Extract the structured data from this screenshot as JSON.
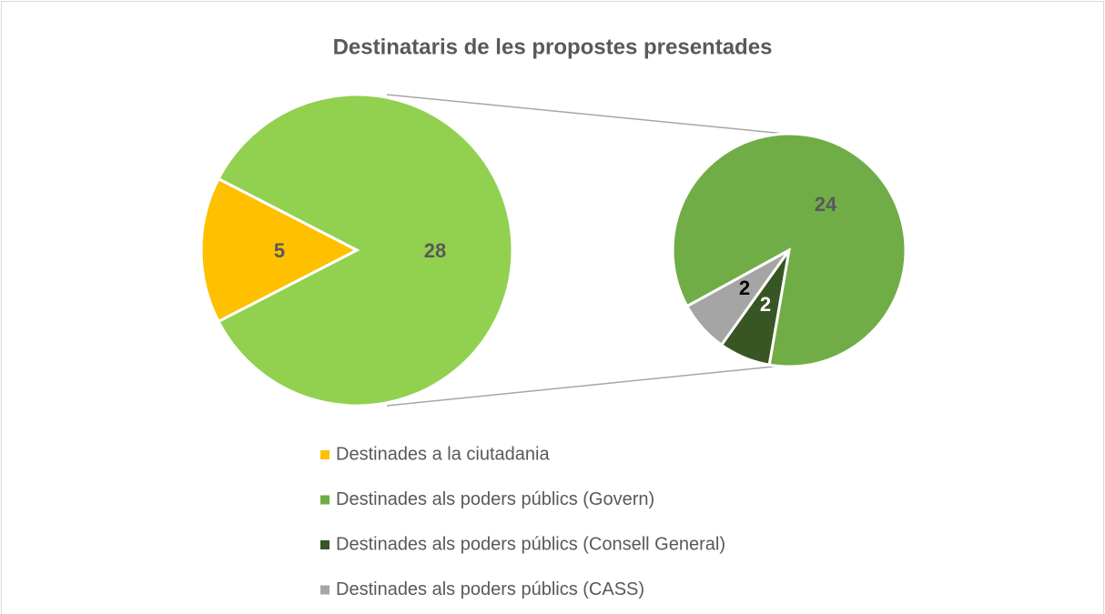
{
  "chart_data": {
    "type": "pie-of-pie",
    "title": "Destinataris de les propostes presentades",
    "categories": [
      "Destinades a la ciutadania",
      "Destinades als poders públics (Govern)",
      "Destinades als poders públics (Consell General)",
      "Destinades als poders públics (CASS)"
    ],
    "values": [
      5,
      24,
      2,
      2
    ],
    "colors": [
      "#ffc000",
      "#70ad47",
      "#375623",
      "#a5a5a5"
    ],
    "label_colors": [
      "#595959",
      "#595959",
      "#ffffff",
      "#000000"
    ],
    "combined_value": 28,
    "combined_color": "#92d050",
    "combined_label_color": "#595959"
  }
}
